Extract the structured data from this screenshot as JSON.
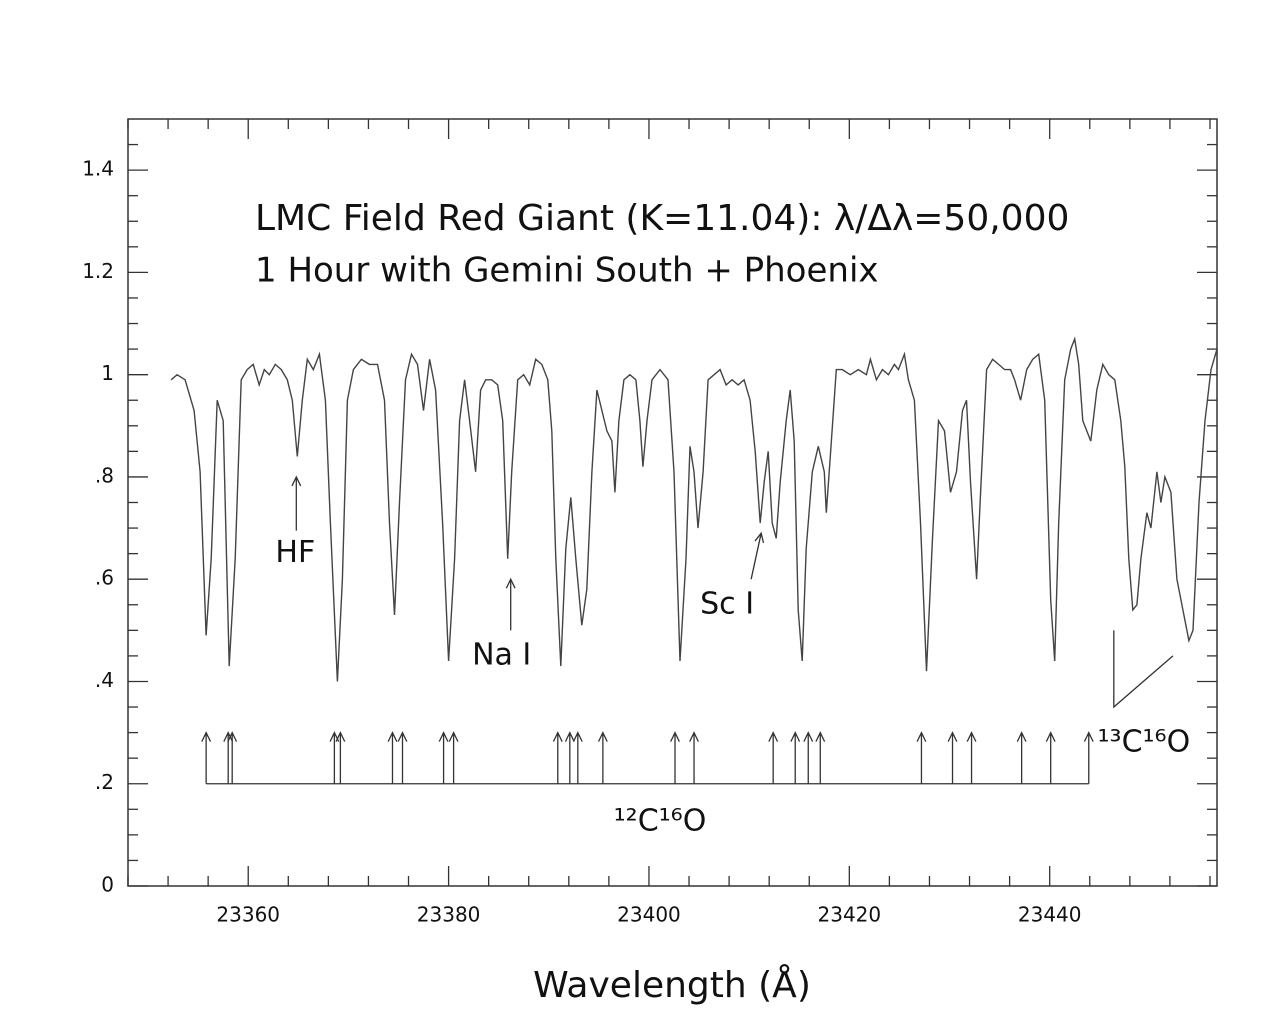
{
  "chart_data": {
    "type": "line",
    "title": "LMC Field Red Giant (K=11.04): λ/Δλ=50,000",
    "subtitle": "1 Hour with Gemini South + Phoenix",
    "x_label": "Wavelength (Å)",
    "color": "#444444",
    "xlim": [
      23348,
      23456.7
    ],
    "ylim": [
      0,
      1.5
    ],
    "xticks": [
      23360,
      23380,
      23400,
      23420,
      23440
    ],
    "yticks": [
      0,
      {
        "value": 0.2,
        "label": ".2"
      },
      {
        "value": 0.4,
        "label": ".4"
      },
      {
        "value": 0.6,
        "label": ".6"
      },
      {
        "value": 0.8,
        "label": ".8"
      },
      1,
      1.2,
      1.4
    ],
    "minor_xticks": [
      23348,
      23352,
      23356,
      23364,
      23368,
      23372,
      23376,
      23384,
      23388,
      23392,
      23396,
      23404,
      23408,
      23412,
      23416,
      23424,
      23428,
      23432,
      23436,
      23444,
      23448,
      23452,
      23456
    ],
    "minor_yticks": [
      0.05,
      0.1,
      0.15,
      0.25,
      0.3,
      0.35,
      0.45,
      0.5,
      0.55,
      0.65,
      0.7,
      0.75,
      0.85,
      0.9,
      0.95,
      1.05,
      1.1,
      1.15,
      1.25,
      1.3,
      1.35,
      1.45
    ],
    "x": [
      23352.3,
      23352.9,
      23353.7,
      23354.6,
      23355.2,
      23355.8,
      23356.3,
      23356.9,
      23357.5,
      23358.1,
      23358.7,
      23359.3,
      23359.9,
      23360.5,
      23361.1,
      23361.6,
      23362.1,
      23362.7,
      23363.3,
      23363.9,
      23364.4,
      23364.9,
      23365.4,
      23365.9,
      23366.5,
      23367.1,
      23367.7,
      23368.2,
      23368.9,
      23369.4,
      23369.9,
      23370.5,
      23371.3,
      23372.1,
      23372.9,
      23373.6,
      23374.1,
      23374.6,
      23375.1,
      23375.7,
      23376.3,
      23376.9,
      23377.5,
      23378.1,
      23378.7,
      23379.4,
      23380.0,
      23380.6,
      23381.1,
      23381.6,
      23382.1,
      23382.7,
      23383.2,
      23383.7,
      23384.3,
      23384.9,
      23385.4,
      23385.9,
      23386.3,
      23386.9,
      23387.5,
      23388.1,
      23388.7,
      23389.3,
      23389.9,
      23390.3,
      23390.7,
      23391.2,
      23391.7,
      23392.2,
      23392.7,
      23393.3,
      23393.8,
      23394.3,
      23394.8,
      23395.3,
      23395.8,
      23396.3,
      23396.6,
      23397.0,
      23397.5,
      23398.1,
      23398.7,
      23399.1,
      23399.4,
      23399.8,
      23400.3,
      23401.1,
      23401.9,
      23402.5,
      23403.1,
      23403.7,
      23404.1,
      23404.5,
      23404.9,
      23405.4,
      23405.9,
      23406.5,
      23407.1,
      23407.7,
      23408.3,
      23408.9,
      23409.5,
      23410.1,
      23410.6,
      23411.1,
      23411.5,
      23411.9,
      23412.3,
      23412.7,
      23413.1,
      23413.7,
      23414.1,
      23414.5,
      23414.9,
      23415.3,
      23415.7,
      23416.3,
      23416.9,
      23417.5,
      23417.7,
      23418.1,
      23418.7,
      23419.3,
      23420.1,
      23420.9,
      23421.7,
      23422.1,
      23422.7,
      23423.3,
      23423.9,
      23424.5,
      23424.9,
      23425.5,
      23425.9,
      23426.5,
      23427.1,
      23427.7,
      23428.3,
      23428.9,
      23429.5,
      23430.1,
      23430.7,
      23431.3,
      23431.7,
      23432.1,
      23432.7,
      23433.1,
      23433.7,
      23434.3,
      23434.9,
      23435.5,
      23436.1,
      23436.5,
      23437.1,
      23437.7,
      23438.3,
      23438.9,
      23439.5,
      23440.1,
      23440.5,
      23440.9,
      23441.5,
      23442.1,
      23442.5,
      23442.9,
      23443.3,
      23444.1,
      23444.7,
      23445.3,
      23445.9,
      23446.5,
      23447.1,
      23447.5,
      23447.9,
      23448.3,
      23448.7,
      23449.1,
      23449.7,
      23450.1,
      23450.7,
      23451.1,
      23451.5,
      23452.1,
      23452.7,
      23453.3,
      23453.9,
      23454.3,
      23454.9,
      23455.5,
      23456.1,
      23456.7
    ],
    "values": [
      0.99,
      1.0,
      0.99,
      0.93,
      0.81,
      0.49,
      0.64,
      0.95,
      0.91,
      0.43,
      0.64,
      0.99,
      1.01,
      1.02,
      0.98,
      1.01,
      1.0,
      1.02,
      1.01,
      0.99,
      0.95,
      0.84,
      0.95,
      1.03,
      1.01,
      1.04,
      0.95,
      0.71,
      0.4,
      0.6,
      0.95,
      1.01,
      1.03,
      1.02,
      1.02,
      0.95,
      0.71,
      0.53,
      0.75,
      0.99,
      1.04,
      1.02,
      0.93,
      1.03,
      0.97,
      0.71,
      0.44,
      0.64,
      0.91,
      0.99,
      0.91,
      0.81,
      0.97,
      0.99,
      0.99,
      0.98,
      0.91,
      0.64,
      0.81,
      0.99,
      1.0,
      0.98,
      1.03,
      1.02,
      0.99,
      0.89,
      0.64,
      0.43,
      0.66,
      0.76,
      0.64,
      0.51,
      0.58,
      0.81,
      0.97,
      0.93,
      0.89,
      0.87,
      0.77,
      0.91,
      0.99,
      1.0,
      0.99,
      0.91,
      0.82,
      0.91,
      0.99,
      1.01,
      0.99,
      0.81,
      0.44,
      0.64,
      0.86,
      0.81,
      0.7,
      0.81,
      0.99,
      1.0,
      1.01,
      0.98,
      0.99,
      0.98,
      0.99,
      0.95,
      0.85,
      0.71,
      0.79,
      0.85,
      0.71,
      0.68,
      0.79,
      0.91,
      0.97,
      0.87,
      0.54,
      0.44,
      0.66,
      0.81,
      0.86,
      0.81,
      0.73,
      0.84,
      1.01,
      1.01,
      1.0,
      1.01,
      1.0,
      1.03,
      0.99,
      1.01,
      1.0,
      1.02,
      1.01,
      1.04,
      0.99,
      0.95,
      0.71,
      0.42,
      0.68,
      0.91,
      0.89,
      0.77,
      0.81,
      0.93,
      0.95,
      0.79,
      0.6,
      0.77,
      1.01,
      1.03,
      1.02,
      1.01,
      1.01,
      0.99,
      0.95,
      1.01,
      1.03,
      1.04,
      0.95,
      0.56,
      0.44,
      0.71,
      0.99,
      1.05,
      1.07,
      1.02,
      0.91,
      0.87,
      0.97,
      1.02,
      1.0,
      0.99,
      0.91,
      0.82,
      0.64,
      0.54,
      0.55,
      0.64,
      0.73,
      0.7,
      0.81,
      0.75,
      0.8,
      0.77,
      0.6,
      0.54,
      0.48,
      0.5,
      0.75,
      0.91,
      1.01,
      1.05
    ],
    "annotations": [
      {
        "text": "HF",
        "x": 23364.7,
        "y": 0.65,
        "arrow": [
          [
            23364.8,
            0.695
          ],
          [
            23364.8,
            0.8
          ]
        ]
      },
      {
        "text": "Na I",
        "x": 23385.3,
        "y": 0.45,
        "arrow": [
          [
            23386.2,
            0.5
          ],
          [
            23386.2,
            0.6
          ]
        ]
      },
      {
        "text": "Sc I",
        "x": 23407.8,
        "y": 0.55,
        "arrow": [
          [
            23410.2,
            0.6
          ],
          [
            23411.2,
            0.69
          ]
        ]
      }
    ],
    "line_list": {
      "label": "¹²C¹⁶O",
      "label_x": 23401.1,
      "label_y": 0.125,
      "base_y": 0.2,
      "tip_y": 0.3,
      "lines": [
        23355.8,
        23358.0,
        23358.4,
        23368.6,
        23369.2,
        23374.4,
        23375.4,
        23379.5,
        23380.5,
        23390.9,
        23392.1,
        23392.9,
        23395.4,
        23402.6,
        23404.5,
        23412.4,
        23414.6,
        23415.9,
        23417.1,
        23427.2,
        23430.3,
        23432.2,
        23437.2,
        23440.1,
        23443.9
      ]
    },
    "bracket": {
      "label": "¹³C¹⁶O",
      "label_x": 23449.4,
      "label_y": 0.28,
      "points": [
        [
          23446.4,
          0.5
        ],
        [
          23446.4,
          0.35
        ],
        [
          23452.3,
          0.45
        ]
      ]
    }
  }
}
